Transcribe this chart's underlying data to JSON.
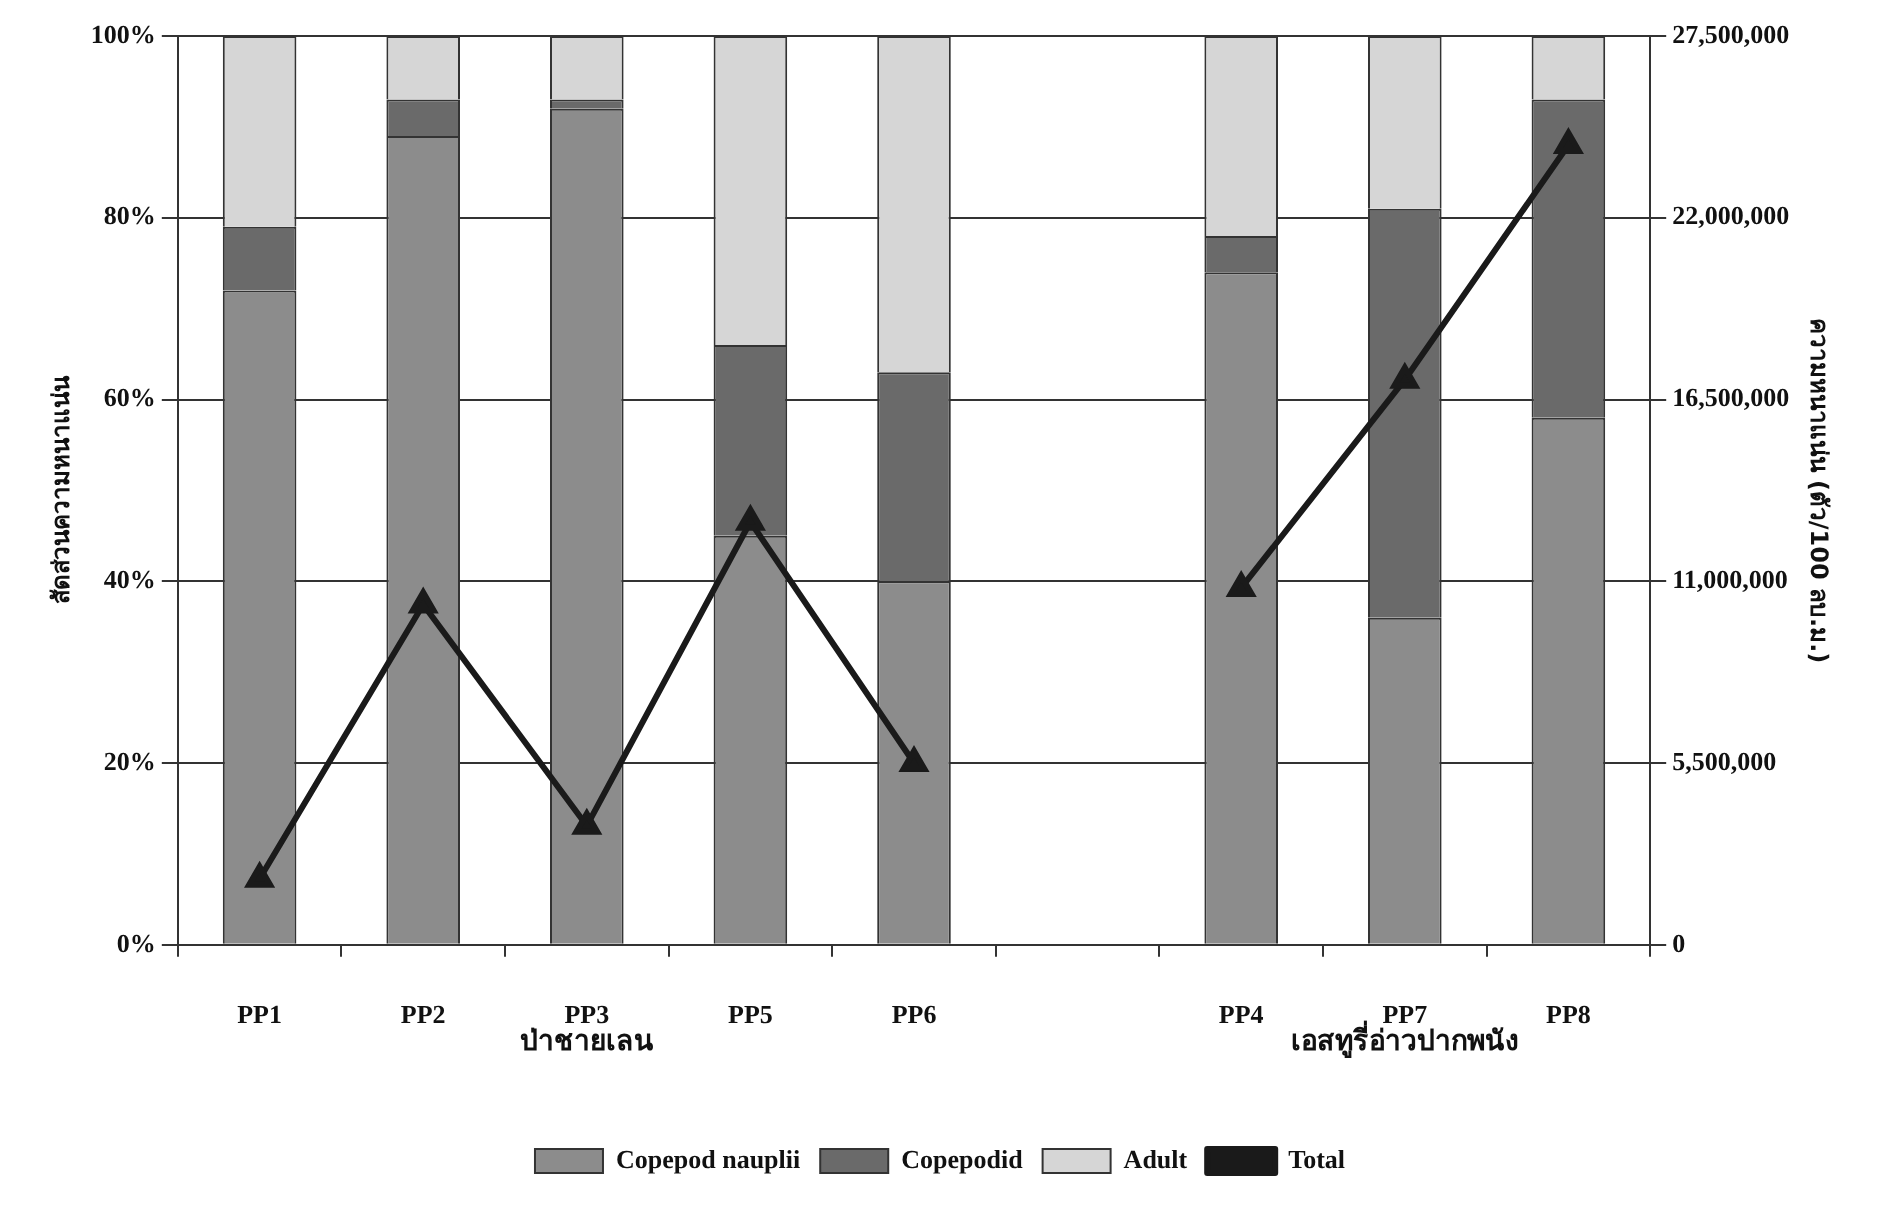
{
  "chart_data": {
    "type": "bar",
    "stacked": true,
    "categories": [
      "PP1",
      "PP2",
      "PP3",
      "PP5",
      "PP6",
      null,
      "PP4",
      "PP7",
      "PP8"
    ],
    "series": [
      {
        "name": "Copepod nauplii",
        "color": "#8c8c8c",
        "values": [
          72,
          89,
          92,
          45,
          40,
          null,
          74,
          36,
          58
        ]
      },
      {
        "name": "Copepodid",
        "color": "#6a6a6a",
        "values": [
          7,
          4,
          1,
          21,
          23,
          null,
          4,
          45,
          35
        ]
      },
      {
        "name": "Adult",
        "color": "#d6d6d6",
        "values": [
          21,
          7,
          7,
          34,
          37,
          null,
          22,
          19,
          7
        ]
      },
      {
        "name": "Total",
        "type": "line",
        "axis": "y2",
        "color": "#1a1a1a",
        "marker": "triangle",
        "values": [
          2000000,
          10300000,
          3600000,
          12800000,
          5500000,
          null,
          10800000,
          17100000,
          24200000
        ]
      }
    ],
    "ylabel": "สัดส่วนความหนาแน่น",
    "y2label": "ความหนาแน่น (ตัว/100 ลบ.ม.)",
    "ylim": [
      0,
      100
    ],
    "yticks": [
      {
        "value": 0,
        "label": "0%"
      },
      {
        "value": 20,
        "label": "20%"
      },
      {
        "value": 40,
        "label": "40%"
      },
      {
        "value": 60,
        "label": "60%"
      },
      {
        "value": 80,
        "label": "80%"
      },
      {
        "value": 100,
        "label": "100%"
      }
    ],
    "y2lim": [
      0,
      27500000
    ],
    "y2ticks": [
      0,
      {
        "value": 5500000,
        "label": "5,500,000"
      },
      {
        "value": 11000000,
        "label": "11,000,000"
      },
      {
        "value": 16500000,
        "label": "16,500,000"
      },
      {
        "value": 22000000,
        "label": "22,000,000"
      },
      {
        "value": 27500000,
        "label": "27,500,000"
      }
    ],
    "annotations": [
      "ป่าชายเลน",
      "เอสทูรี่อ่าวปากพนัง"
    ],
    "grid": "y",
    "legend": "bottom"
  }
}
